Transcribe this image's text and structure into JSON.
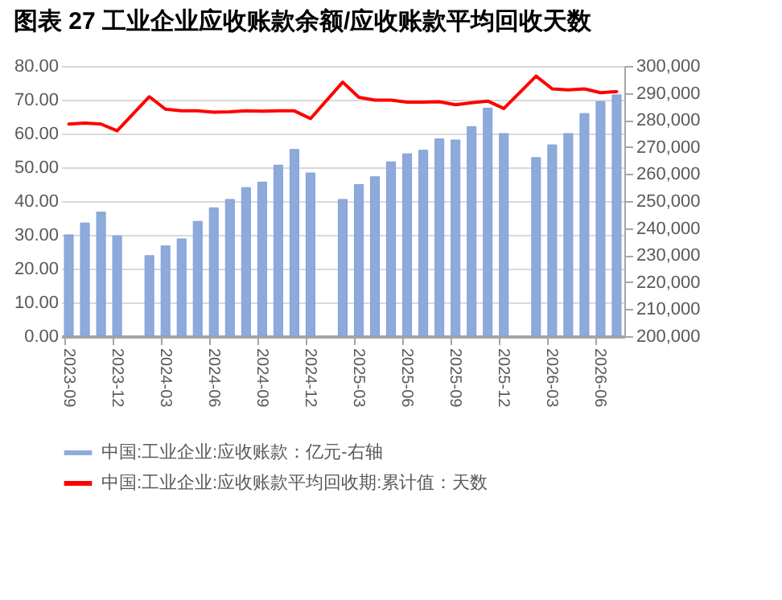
{
  "chart_data": {
    "type": "bar",
    "title": "图表 27  工业企业应收账款余额/应收账款平均回收天数",
    "categories": [
      "2023-09",
      null,
      null,
      "2023-12",
      null,
      null,
      "2024-03",
      null,
      null,
      "2024-06",
      null,
      null,
      "2024-09",
      null,
      null,
      "2024-12",
      null,
      null,
      "2025-03",
      null,
      null,
      "2025-06",
      null,
      null,
      "2025-09",
      null,
      null,
      "2025-12",
      null,
      null,
      "2026-03",
      null,
      null,
      "2026-06",
      null
    ],
    "series": [
      {
        "name": "中国:工业企业:应收账款：亿元-右轴",
        "axis": "y2",
        "color": "#8eaadb",
        "values": [
          237500,
          241900,
          245900,
          237100,
          null,
          229800,
          233400,
          236000,
          242500,
          247500,
          250600,
          255000,
          257000,
          263300,
          269100,
          260400,
          null,
          250600,
          256100,
          259000,
          264500,
          267500,
          268800,
          273000,
          272600,
          277500,
          284400,
          275000,
          null,
          266100,
          270800,
          275000,
          282400,
          286800,
          289300
        ]
      },
      {
        "name": "中国:工业企业:应收账款平均回收期:累计值：天数",
        "type": "line",
        "color": "#ff0000",
        "values": [
          62.8,
          63.1,
          62.8,
          60.8,
          null,
          70.9,
          67.2,
          66.7,
          66.7,
          66.3,
          66.4,
          66.7,
          66.6,
          66.7,
          66.7,
          64.4,
          null,
          75.2,
          70.7,
          69.9,
          69.9,
          69.3,
          69.3,
          69.4,
          68.5,
          69.1,
          69.6,
          67.4,
          null,
          77.0,
          73.2,
          72.9,
          73.2,
          72.1,
          72.4
        ]
      }
    ],
    "ylim": [
      0,
      80
    ],
    "yticks": [
      {
        "value": 0,
        "label": "0.00"
      },
      {
        "value": 10,
        "label": "10.00"
      },
      {
        "value": 20,
        "label": "20.00"
      },
      {
        "value": 30,
        "label": "30.00"
      },
      {
        "value": 40,
        "label": "40.00"
      },
      {
        "value": 50,
        "label": "50.00"
      },
      {
        "value": 60,
        "label": "60.00"
      },
      {
        "value": 70,
        "label": "70.00"
      },
      {
        "value": 80,
        "label": "80.00"
      }
    ],
    "y2lim": [
      200000,
      300000
    ],
    "y2ticks": [
      {
        "value": 200000,
        "label": "200,000"
      },
      {
        "value": 210000,
        "label": "210,000"
      },
      {
        "value": 220000,
        "label": "220,000"
      },
      {
        "value": 230000,
        "label": "230,000"
      },
      {
        "value": 240000,
        "label": "240,000"
      },
      {
        "value": 250000,
        "label": "250,000"
      },
      {
        "value": 260000,
        "label": "260,000"
      },
      {
        "value": 270000,
        "label": "270,000"
      },
      {
        "value": 280000,
        "label": "280,000"
      },
      {
        "value": 290000,
        "label": "290,000"
      },
      {
        "value": 300000,
        "label": "300,000"
      }
    ],
    "grid": "y",
    "legend": "bottom"
  }
}
